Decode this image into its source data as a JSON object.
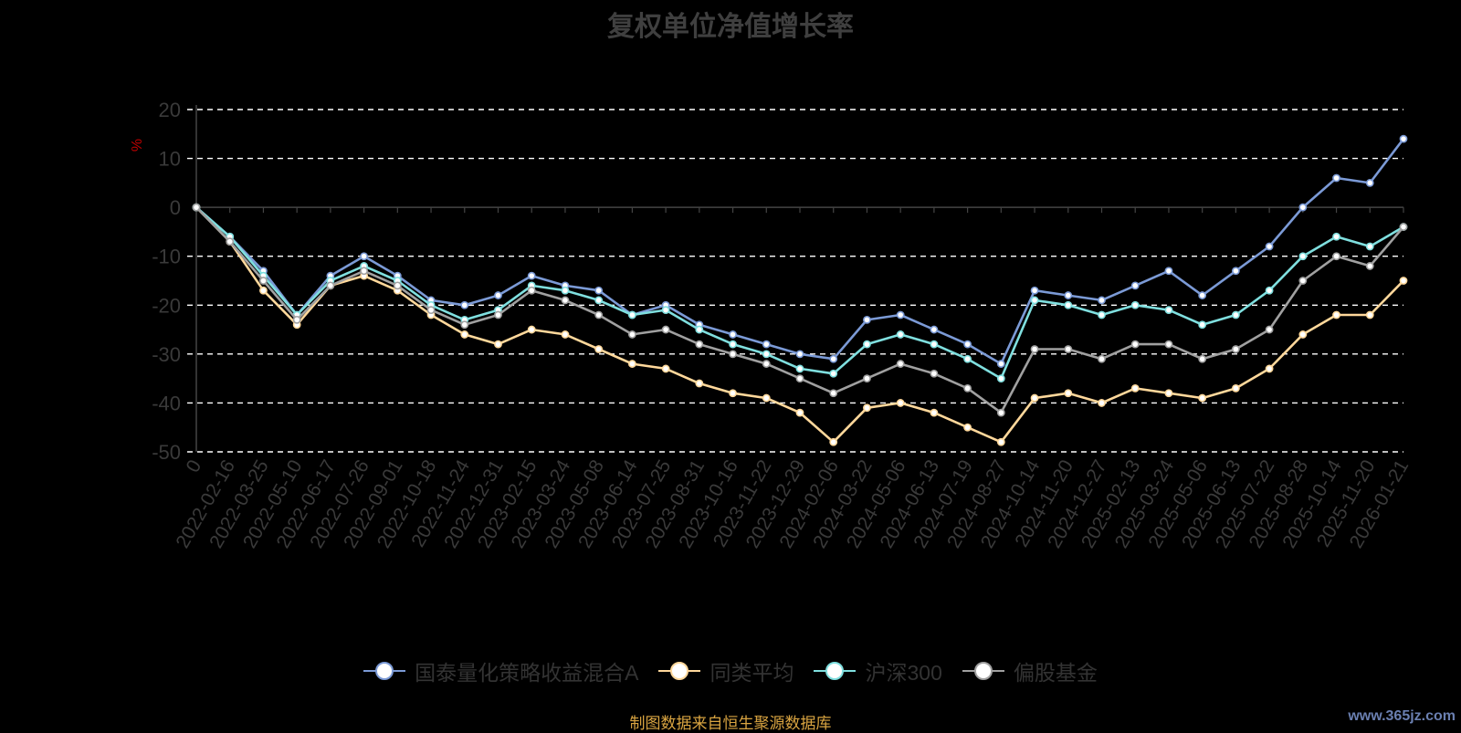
{
  "chart_data": {
    "type": "line",
    "title": "复权单位净值增长率",
    "ylabel": "%",
    "ylim": [
      -50,
      20
    ],
    "yticks": [
      20,
      10,
      0,
      -10,
      -20,
      -30,
      -40,
      -50
    ],
    "x": [
      "0",
      "2022-02-16",
      "2022-03-25",
      "2022-05-10",
      "2022-06-17",
      "2022-07-26",
      "2022-09-01",
      "2022-10-18",
      "2022-11-24",
      "2022-12-31",
      "2023-02-15",
      "2023-03-24",
      "2023-05-08",
      "2023-06-14",
      "2023-07-25",
      "2023-08-31",
      "2023-10-16",
      "2023-11-22",
      "2023-12-29",
      "2024-02-06",
      "2024-03-22",
      "2024-05-06",
      "2024-06-13",
      "2024-07-19",
      "2024-08-27",
      "2024-10-14",
      "2024-11-20",
      "2024-12-27",
      "2025-02-13",
      "2025-03-24",
      "2025-05-06",
      "2025-06-13",
      "2025-07-22",
      "2025-08-28",
      "2025-10-14",
      "2025-11-20",
      "2026-01-21"
    ],
    "grid": true,
    "legend_position": "bottom",
    "series": [
      {
        "name": "国泰量化策略收益混合A",
        "color": "#7b9ad6",
        "values": [
          0,
          -6,
          -13,
          -22,
          -14,
          -10,
          -14,
          -19,
          -20,
          -18,
          -14,
          -16,
          -17,
          -22,
          -20,
          -24,
          -26,
          -28,
          -30,
          -31,
          -23,
          -22,
          -25,
          -28,
          -32,
          -17,
          -18,
          -19,
          -16,
          -13,
          -18,
          -13,
          -8,
          0,
          6,
          5,
          14
        ]
      },
      {
        "name": "同类平均",
        "color": "#ffd89b",
        "values": [
          0,
          -7,
          -17,
          -24,
          -16,
          -14,
          -17,
          -22,
          -26,
          -28,
          -25,
          -26,
          -29,
          -32,
          -33,
          -36,
          -38,
          -39,
          -42,
          -48,
          -41,
          -40,
          -42,
          -45,
          -48,
          -39,
          -38,
          -40,
          -37,
          -38,
          -39,
          -37,
          -33,
          -26,
          -22,
          -22,
          -15
        ]
      },
      {
        "name": "沪深300",
        "color": "#7fdfdf",
        "values": [
          0,
          -6,
          -14,
          -22,
          -15,
          -12,
          -15,
          -20,
          -23,
          -21,
          -16,
          -17,
          -19,
          -22,
          -21,
          -25,
          -28,
          -30,
          -33,
          -34,
          -28,
          -26,
          -28,
          -31,
          -35,
          -19,
          -20,
          -22,
          -20,
          -21,
          -24,
          -22,
          -17,
          -10,
          -6,
          -8,
          -4
        ]
      },
      {
        "name": "偏股基金",
        "color": "#a0a0a0",
        "values": [
          0,
          -7,
          -15,
          -23,
          -16,
          -13,
          -16,
          -21,
          -24,
          -22,
          -17,
          -19,
          -22,
          -26,
          -25,
          -28,
          -30,
          -32,
          -35,
          -38,
          -35,
          -32,
          -34,
          -37,
          -42,
          -29,
          -29,
          -31,
          -28,
          -28,
          -31,
          -29,
          -25,
          -15,
          -10,
          -12,
          -4
        ]
      }
    ]
  },
  "source_note": "制图数据来自恒生聚源数据库",
  "watermark": "www.365jz.com"
}
